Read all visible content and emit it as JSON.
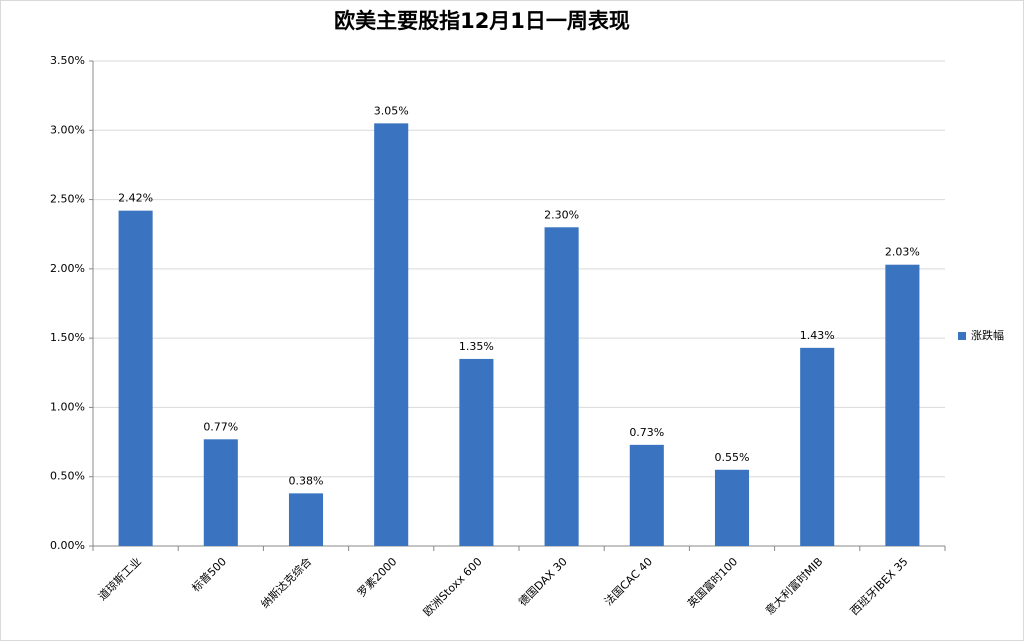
{
  "chart_data": {
    "type": "bar",
    "title": "欧美主要股指12月1日一周表现",
    "categories": [
      "道琼斯工业",
      "标普500",
      "纳斯达克综合",
      "罗素2000",
      "欧洲Stoxx 600",
      "德国DAX 30",
      "法国CAC 40",
      "英国富时100",
      "意大利富时MIB",
      "西班牙IBEX 35"
    ],
    "series": [
      {
        "name": "涨跌幅",
        "color": "#3a74c0",
        "values": [
          2.42,
          0.77,
          0.38,
          3.05,
          1.35,
          2.3,
          0.73,
          0.55,
          1.43,
          2.03
        ],
        "value_labels": [
          "2.42%",
          "0.77%",
          "0.38%",
          "3.05%",
          "1.35%",
          "2.30%",
          "0.73%",
          "0.55%",
          "1.43%",
          "2.03%"
        ]
      }
    ],
    "ylim": [
      0,
      3.5
    ],
    "yticks": [
      {
        "value": 0,
        "label": "0.00%"
      },
      {
        "value": 0.5,
        "label": "0.50%"
      },
      {
        "value": 1,
        "label": "1.00%"
      },
      {
        "value": 1.5,
        "label": "1.50%"
      },
      {
        "value": 2,
        "label": "2.00%"
      },
      {
        "value": 2.5,
        "label": "2.50%"
      },
      {
        "value": 3,
        "label": "3.00%"
      },
      {
        "value": 3.5,
        "label": "3.50%"
      }
    ],
    "grid": true,
    "legend": "right"
  }
}
